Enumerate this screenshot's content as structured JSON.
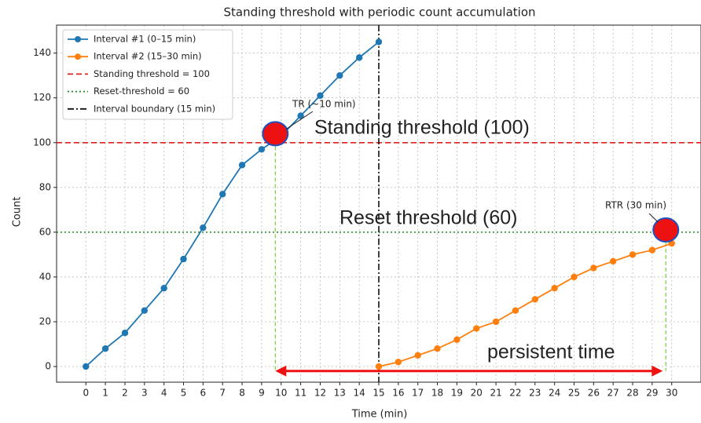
{
  "chart_data": {
    "type": "line",
    "title": "Standing threshold with periodic count accumulation",
    "xlabel": "Time (min)",
    "ylabel": "Count",
    "xlim": [
      -1.5,
      31.5
    ],
    "ylim": [
      -7,
      152.5
    ],
    "xticks": [
      0,
      1,
      2,
      3,
      4,
      5,
      6,
      7,
      8,
      9,
      10,
      11,
      12,
      13,
      14,
      15,
      16,
      17,
      18,
      19,
      20,
      21,
      22,
      23,
      24,
      25,
      26,
      27,
      28,
      29,
      30
    ],
    "yticks": [
      0,
      20,
      40,
      60,
      80,
      100,
      120,
      140
    ],
    "grid": true,
    "legend": "upper left",
    "series": [
      {
        "name": "Interval #1 (0–15 min)",
        "color": "#1f77b4",
        "x": [
          0,
          1,
          2,
          3,
          4,
          5,
          6,
          7,
          8,
          9,
          10,
          11,
          12,
          13,
          14,
          15
        ],
        "values": [
          0,
          8,
          15,
          25,
          35,
          48,
          62,
          77,
          90,
          97,
          103,
          112,
          121,
          130,
          138,
          145
        ]
      },
      {
        "name": "Interval #2 (15–30 min)",
        "color": "#ff7f0e",
        "x": [
          15,
          16,
          17,
          18,
          19,
          20,
          21,
          22,
          23,
          24,
          25,
          26,
          27,
          28,
          29,
          30
        ],
        "values": [
          0,
          2,
          5,
          8,
          12,
          17,
          20,
          25,
          30,
          35,
          40,
          44,
          47,
          50,
          52,
          55
        ]
      }
    ],
    "reference_lines": [
      {
        "name": "Standing threshold = 100",
        "color": "#e02020",
        "orientation": "horizontal",
        "value": 100,
        "style": "dashed"
      },
      {
        "name": "Reset-threshold = 60",
        "color": "#1e8a1e",
        "orientation": "horizontal",
        "value": 60,
        "style": "dotted"
      },
      {
        "name": "Interval boundary (15 min)",
        "color": "#111111",
        "orientation": "vertical",
        "value": 15,
        "style": "dashdot"
      }
    ],
    "annotations": {
      "tr": "TR (~10 min)",
      "rtr": "RTR (30 min)",
      "standing": "Standing threshold (100)",
      "reset": "Reset threshold (60)",
      "persistent": "persistent time"
    }
  }
}
